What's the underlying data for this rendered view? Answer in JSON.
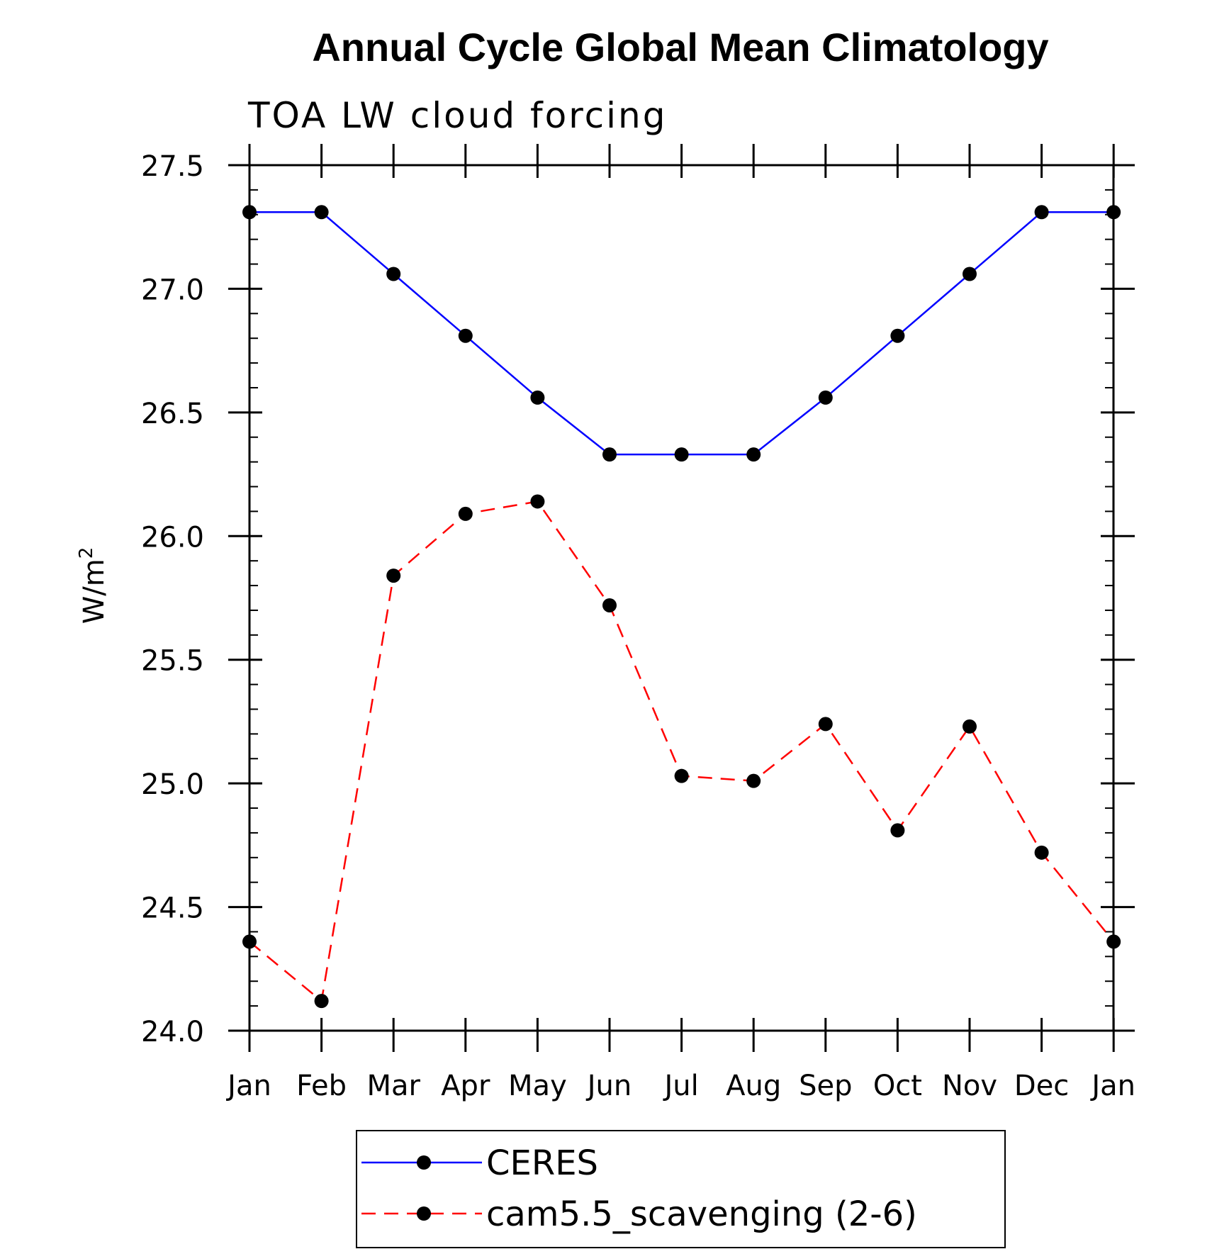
{
  "chart_data": {
    "type": "line",
    "title": "Annual Cycle Global Mean Climatology",
    "subtitle": "TOA LW cloud forcing",
    "xlabel": "",
    "ylabel": "W/m",
    "ylabel_superscript": "2",
    "categories": [
      "Jan",
      "Feb",
      "Mar",
      "Apr",
      "May",
      "Jun",
      "Jul",
      "Aug",
      "Sep",
      "Oct",
      "Nov",
      "Dec",
      "Jan"
    ],
    "ylim": [
      24.0,
      27.5
    ],
    "yticks": [
      "24.0",
      "24.5",
      "25.0",
      "25.5",
      "26.0",
      "26.5",
      "27.0",
      "27.5"
    ],
    "ytick_values": [
      24.0,
      24.5,
      25.0,
      25.5,
      26.0,
      26.5,
      27.0,
      27.5
    ],
    "grid": false,
    "legend_position": "bottom-center",
    "series": [
      {
        "name": "CERES",
        "color": "#0000ff",
        "dash": "solid",
        "values": [
          27.31,
          27.31,
          27.06,
          26.81,
          26.56,
          26.33,
          26.33,
          26.33,
          26.56,
          26.81,
          27.06,
          27.31,
          27.31
        ]
      },
      {
        "name": "cam5.5_scavenging (2-6)",
        "color": "#ff0000",
        "dash": "dashed",
        "values": [
          24.36,
          24.12,
          25.84,
          26.09,
          26.14,
          25.72,
          25.03,
          25.01,
          25.24,
          24.81,
          25.23,
          24.72,
          24.36
        ]
      }
    ]
  }
}
